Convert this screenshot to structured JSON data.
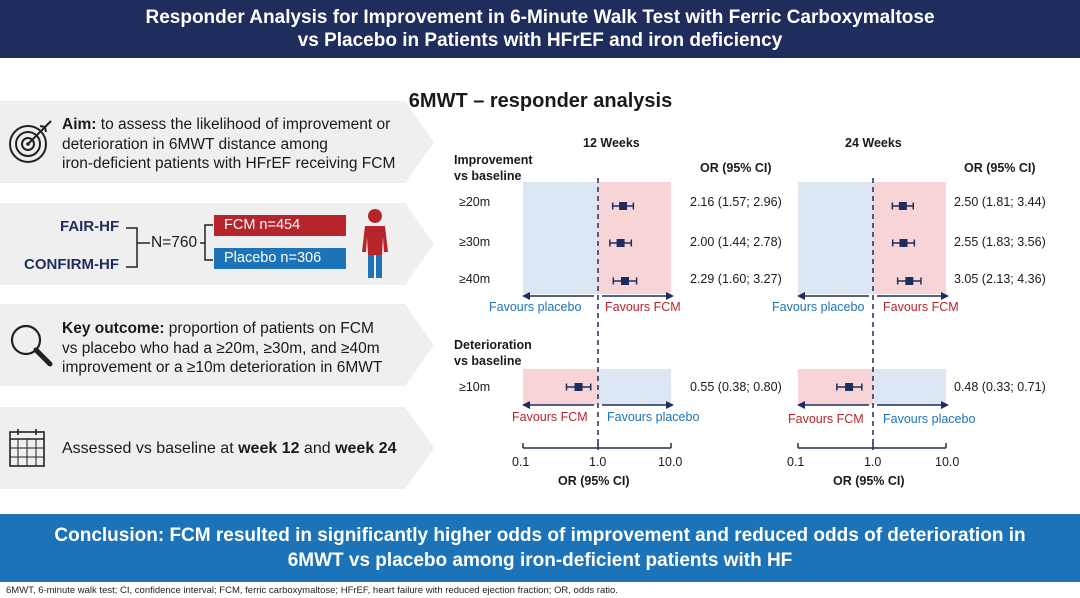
{
  "header": {
    "title_line1": "Responder Analysis for Improvement in 6-Minute Walk Test with Ferric Carboxymaltose",
    "title_line2": "vs Placebo in Patients with HFrEF and iron deficiency"
  },
  "aim": {
    "label": "Aim:",
    "text_line1": " to assess the likelihood of improvement or",
    "text_line2": "deterioration in 6MWT distance among",
    "text_line3": "iron-deficient patients with HFrEF receiving FCM"
  },
  "trials": {
    "trial1": "FAIR-HF",
    "trial2": "CONFIRM-HF",
    "n_total": "N=760",
    "fcm_label": "FCM n=454",
    "placebo_label": "Placebo n=306"
  },
  "key_outcome": {
    "label": "Key outcome:",
    "text_line1": " proportion of patients on FCM",
    "text_line2": "vs placebo who had a ≥20m, ≥30m, and ≥40m",
    "text_line3": "improvement or a ≥10m deterioration in 6MWT"
  },
  "assessed": {
    "prefix": "Assessed vs baseline at ",
    "week12": "week 12",
    "middle": " and ",
    "week24": "week 24"
  },
  "conclusion": {
    "line1": "Conclusion: FCM resulted in significantly higher odds of improvement and reduced odds of deterioration in",
    "line2": "6MWT vs placebo among iron-deficient patients with HF"
  },
  "footnote": "6MWT, 6-minute walk test; CI, confidence interval; FCM, ferric carboxymaltose; HFrEF, heart failure with reduced ejection fraction; OR, odds ratio.",
  "colors": {
    "navy": "#1f2d5c",
    "blue": "#1d73b7",
    "red": "#b7252c",
    "pink_shade": "#f7d4d6",
    "blue_shade": "#dde6f3"
  },
  "chart_data": {
    "type": "forest",
    "title": "6MWT – responder analysis",
    "scale": "log",
    "xlim": [
      0.1,
      10.0
    ],
    "x_ticks": [
      "0.1",
      "1.0",
      "10.0"
    ],
    "xlabel": "OR (95% CI)",
    "ci_header": "OR (95% CI)",
    "section_improvement": "Improvement vs baseline",
    "section_improvement_line1": "Improvement",
    "section_improvement_line2": "vs baseline",
    "section_deterioration_line1": "Deterioration",
    "section_deterioration_line2": "vs baseline",
    "favours_placebo": "Favours placebo",
    "favours_fcm": "Favours FCM",
    "row_labels": [
      "≥20m",
      "≥30m",
      "≥40m",
      "≥10m"
    ],
    "panels": [
      {
        "name": "12 Weeks",
        "points": [
          {
            "label": "≥20m",
            "or": 2.16,
            "lo": 1.57,
            "hi": 2.96,
            "text": "2.16 (1.57; 2.96)"
          },
          {
            "label": "≥30m",
            "or": 2.0,
            "lo": 1.44,
            "hi": 2.78,
            "text": "2.00 (1.44; 2.78)"
          },
          {
            "label": "≥40m",
            "or": 2.29,
            "lo": 1.6,
            "hi": 3.27,
            "text": "2.29 (1.60; 3.27)"
          },
          {
            "label": "≥10m",
            "or": 0.55,
            "lo": 0.38,
            "hi": 0.8,
            "text": "0.55 (0.38; 0.80)"
          }
        ]
      },
      {
        "name": "24 Weeks",
        "points": [
          {
            "label": "≥20m",
            "or": 2.5,
            "lo": 1.81,
            "hi": 3.44,
            "text": "2.50 (1.81; 3.44)"
          },
          {
            "label": "≥30m",
            "or": 2.55,
            "lo": 1.83,
            "hi": 3.56,
            "text": "2.55 (1.83; 3.56)"
          },
          {
            "label": "≥40m",
            "or": 3.05,
            "lo": 2.13,
            "hi": 4.36,
            "text": "3.05 (2.13; 4.36)"
          },
          {
            "label": "≥10m",
            "or": 0.48,
            "lo": 0.33,
            "hi": 0.71,
            "text": "0.48 (0.33; 0.71)"
          }
        ]
      }
    ]
  }
}
